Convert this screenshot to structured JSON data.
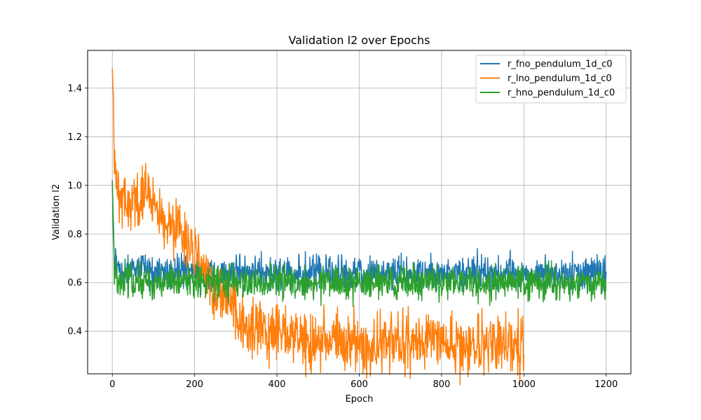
{
  "chart_data": {
    "type": "line",
    "title": "Validation l2 over Epochs",
    "xlabel": "Epoch",
    "ylabel": "Validation l2",
    "xlim": [
      -60,
      1260
    ],
    "ylim": [
      0.225,
      1.555
    ],
    "xticks": [
      0,
      200,
      400,
      600,
      800,
      1000,
      1200
    ],
    "yticks": [
      0.4,
      0.6,
      0.8,
      1.0,
      1.2,
      1.4
    ],
    "xtick_labels": [
      "0",
      "200",
      "400",
      "600",
      "800",
      "1000",
      "1200"
    ],
    "ytick_labels": [
      "0.4",
      "0.6",
      "0.8",
      "1.0",
      "1.2",
      "1.4"
    ],
    "grid": true,
    "legend_position": "top-right",
    "series": [
      {
        "name": "r_fno_pendulum_1d_c0",
        "color": "#1f77b4",
        "x": [
          0,
          2,
          4,
          6,
          10,
          20,
          40,
          60,
          80,
          100,
          150,
          200,
          250,
          300,
          400,
          500,
          600,
          700,
          800,
          900,
          1000,
          1100,
          1200
        ],
        "y": [
          1.02,
          0.88,
          0.72,
          0.68,
          0.66,
          0.65,
          0.65,
          0.65,
          0.65,
          0.65,
          0.65,
          0.64,
          0.64,
          0.64,
          0.64,
          0.64,
          0.63,
          0.64,
          0.64,
          0.64,
          0.64,
          0.64,
          0.64
        ],
        "noise": 0.035
      },
      {
        "name": "r_lno_pendulum_1d_c0",
        "color": "#ff7f0e",
        "x": [
          0,
          2,
          4,
          6,
          8,
          12,
          20,
          30,
          40,
          60,
          80,
          100,
          120,
          140,
          160,
          180,
          200,
          220,
          240,
          260,
          280,
          300,
          320,
          340,
          360,
          380,
          400,
          450,
          500,
          550,
          600,
          650,
          700,
          750,
          800,
          850,
          900,
          950,
          1000
        ],
        "y": [
          1.48,
          1.38,
          1.22,
          1.1,
          1.04,
          0.99,
          0.95,
          0.92,
          0.93,
          0.96,
          0.98,
          0.92,
          0.85,
          0.8,
          0.82,
          0.79,
          0.7,
          0.63,
          0.58,
          0.55,
          0.52,
          0.48,
          0.43,
          0.41,
          0.42,
          0.4,
          0.38,
          0.37,
          0.36,
          0.36,
          0.35,
          0.35,
          0.35,
          0.35,
          0.35,
          0.35,
          0.34,
          0.34,
          0.35
        ],
        "noise": 0.06
      },
      {
        "name": "r_hno_pendulum_1d_c0",
        "color": "#2ca02c",
        "x": [
          0,
          2,
          4,
          6,
          10,
          20,
          40,
          60,
          80,
          100,
          150,
          200,
          250,
          300,
          400,
          500,
          600,
          700,
          800,
          900,
          1000,
          1100,
          1200
        ],
        "y": [
          1.01,
          0.82,
          0.66,
          0.63,
          0.62,
          0.62,
          0.61,
          0.61,
          0.61,
          0.6,
          0.6,
          0.6,
          0.6,
          0.6,
          0.6,
          0.6,
          0.6,
          0.6,
          0.6,
          0.6,
          0.6,
          0.6,
          0.6
        ],
        "noise": 0.035
      }
    ]
  }
}
